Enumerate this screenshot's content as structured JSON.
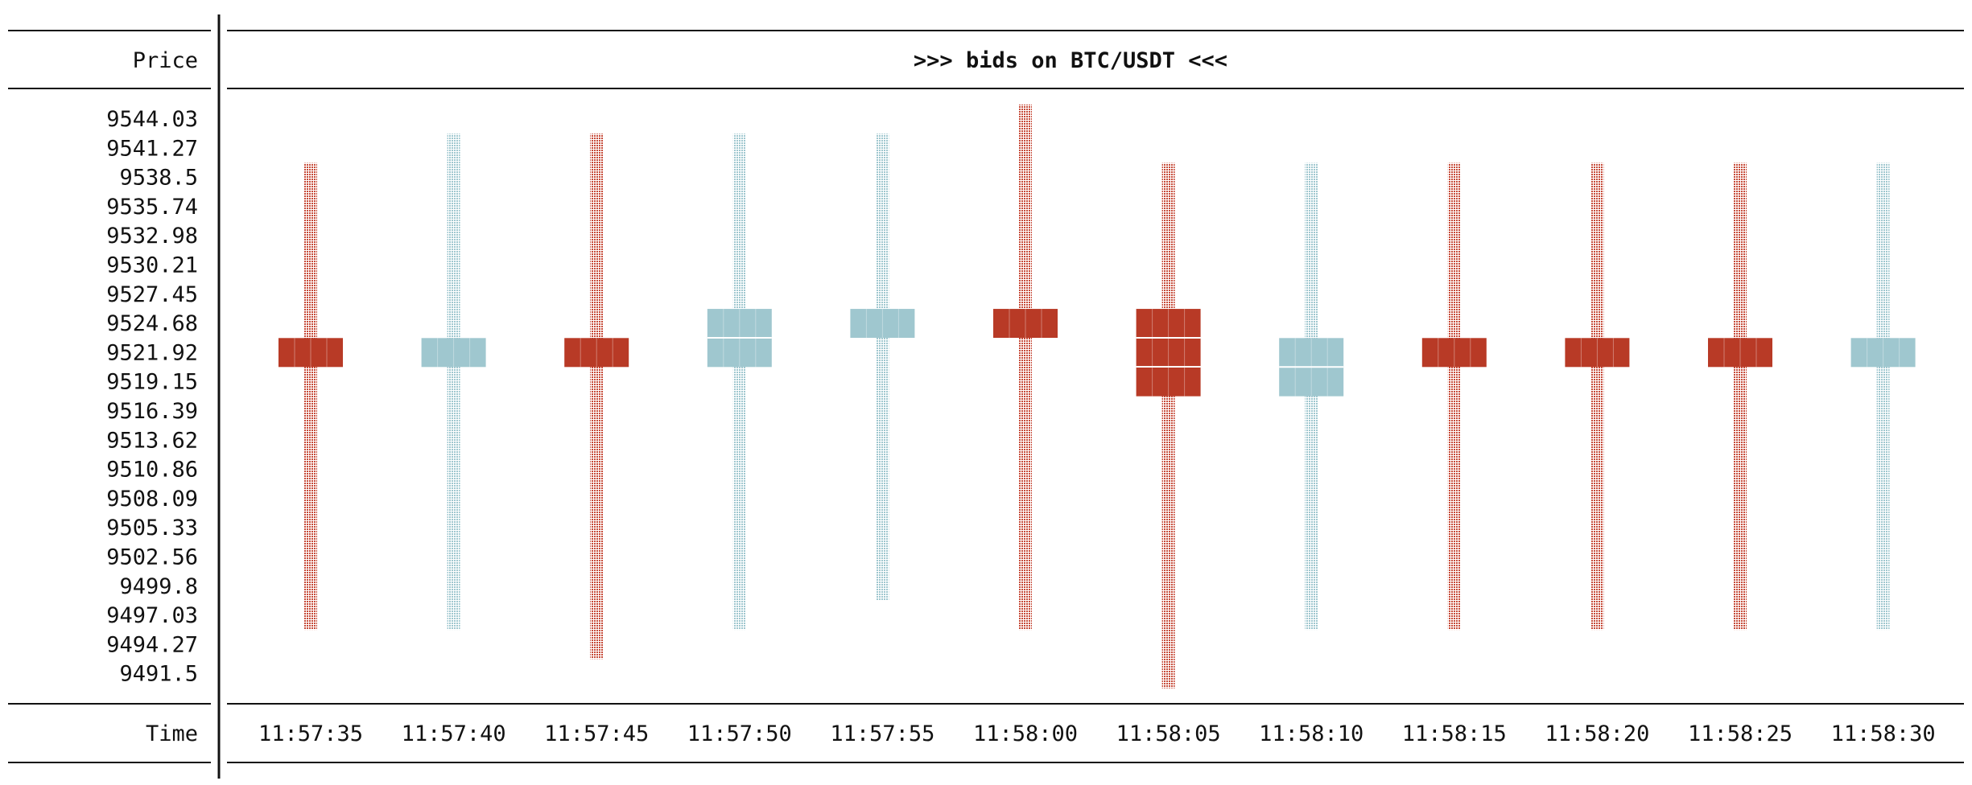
{
  "header": {
    "price_label": "Price",
    "time_label": "Time",
    "title": ">>> bids on BTC/USDT <<<"
  },
  "colors": {
    "red": "#b83a26",
    "blue": "#9fc7cf",
    "rule": "#111111"
  },
  "chart_data": {
    "type": "candlestick",
    "title": ">>> bids on BTC/USDT <<<",
    "ylabel": "Price",
    "xlabel": "Time",
    "y_ticks": [
      "9544.03",
      "9541.27",
      "9538.5",
      "9535.74",
      "9532.98",
      "9530.21",
      "9527.45",
      "9524.68",
      "9521.92",
      "9519.15",
      "9516.39",
      "9513.62",
      "9510.86",
      "9508.09",
      "9505.33",
      "9502.56",
      "9499.8",
      "9497.03",
      "9494.27",
      "9491.5"
    ],
    "ylim": [
      9491.5,
      9544.03
    ],
    "x": [
      "11:57:35",
      "11:57:40",
      "11:57:45",
      "11:57:50",
      "11:57:55",
      "11:58:00",
      "11:58:05",
      "11:58:10",
      "11:58:15",
      "11:58:20",
      "11:58:25",
      "11:58:30"
    ],
    "candles": [
      {
        "time": "11:57:35",
        "color": "red",
        "high": 9538.5,
        "low": 9497.03,
        "body_high": 9521.92,
        "body_low": 9521.92
      },
      {
        "time": "11:57:40",
        "color": "blue",
        "high": 9541.27,
        "low": 9497.03,
        "body_high": 9521.92,
        "body_low": 9521.92
      },
      {
        "time": "11:57:45",
        "color": "red",
        "high": 9541.27,
        "low": 9494.27,
        "body_high": 9521.92,
        "body_low": 9521.92
      },
      {
        "time": "11:57:50",
        "color": "blue",
        "high": 9541.27,
        "low": 9497.03,
        "body_high": 9524.68,
        "body_low": 9521.92
      },
      {
        "time": "11:57:55",
        "color": "blue",
        "high": 9541.27,
        "low": 9499.8,
        "body_high": 9524.68,
        "body_low": 9524.68
      },
      {
        "time": "11:58:00",
        "color": "red",
        "high": 9544.03,
        "low": 9497.03,
        "body_high": 9524.68,
        "body_low": 9524.68
      },
      {
        "time": "11:58:05",
        "color": "red",
        "high": 9538.5,
        "low": 9491.5,
        "body_high": 9524.68,
        "body_low": 9519.15
      },
      {
        "time": "11:58:10",
        "color": "blue",
        "high": 9538.5,
        "low": 9497.03,
        "body_high": 9521.92,
        "body_low": 9519.15
      },
      {
        "time": "11:58:15",
        "color": "red",
        "high": 9538.5,
        "low": 9497.03,
        "body_high": 9521.92,
        "body_low": 9521.92
      },
      {
        "time": "11:58:20",
        "color": "red",
        "high": 9538.5,
        "low": 9497.03,
        "body_high": 9521.92,
        "body_low": 9521.92
      },
      {
        "time": "11:58:25",
        "color": "red",
        "high": 9538.5,
        "low": 9497.03,
        "body_high": 9521.92,
        "body_low": 9521.92
      },
      {
        "time": "11:58:30",
        "color": "blue",
        "high": 9538.5,
        "low": 9497.03,
        "body_high": 9521.92,
        "body_low": 9521.92
      }
    ]
  }
}
